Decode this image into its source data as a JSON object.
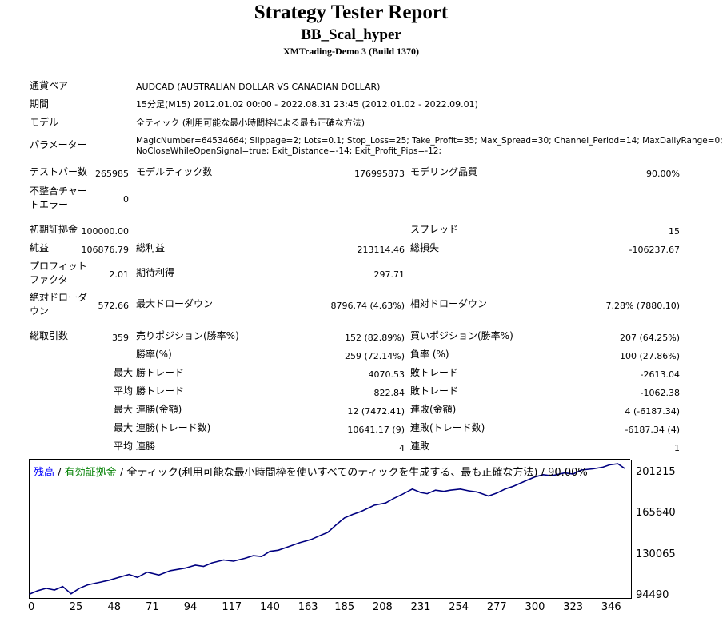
{
  "header": {
    "title": "Strategy Tester Report",
    "subtitle": "BB_Scal_hyper",
    "server": "XMTrading-Demo 3 (Build 1370)"
  },
  "settings": {
    "symbol_label": "通貨ペア",
    "symbol_value": "AUDCAD (AUSTRALIAN DOLLAR VS CANADIAN DOLLAR)",
    "period_label": "期間",
    "period_value": "15分足(M15) 2012.01.02 00:00 - 2022.08.31 23:45 (2012.01.02 - 2022.09.01)",
    "model_label": "モデル",
    "model_value": "全ティック (利用可能な最小時間枠による最も正確な方法)",
    "params_label": "パラメーター",
    "params_line1": "MagicNumber=64534664; Slippage=2; Lots=0.1; Stop_Loss=25; Take_Profit=35; Max_Spread=30; Channel_Period=14; MaxDailyRange=0;",
    "params_line2": "NoCloseWhileOpenSignal=true; Exit_Distance=-14; Exit_Profit_Pips=-12;"
  },
  "stats": {
    "bars_label": "テストバー数",
    "bars_value": "265985",
    "ticks_label": "モデルティック数",
    "ticks_value": "176995873",
    "quality_label": "モデリング品質",
    "quality_value": "90.00%",
    "mismatch_label_1": "不整合チャー",
    "mismatch_label_2": "トエラー",
    "mismatch_value": "0",
    "deposit_label": "初期証拠金",
    "deposit_value": "100000.00",
    "spread_label": "スプレッド",
    "spread_value": "15",
    "net_label": "純益",
    "net_value": "106876.79",
    "gross_profit_label": "総利益",
    "gross_profit_value": "213114.46",
    "gross_loss_label": "総損失",
    "gross_loss_value": "-106237.67",
    "pf_label_1": "プロフィット",
    "pf_label_2": "ファクタ",
    "pf_value": "2.01",
    "expected_label": "期待利得",
    "expected_value": "297.71",
    "abs_dd_label_1": "絶対ドローダ",
    "abs_dd_label_2": "ウン",
    "abs_dd_value": "572.66",
    "max_dd_label": "最大ドローダウン",
    "max_dd_value": "8796.74 (4.63%)",
    "rel_dd_label": "相対ドローダウン",
    "rel_dd_value": "7.28% (7880.10)",
    "trades_label": "総取引数",
    "trades_value": "359",
    "short_label": "売りポジション(勝率%)",
    "short_value": "152 (82.89%)",
    "long_label": "買いポジション(勝率%)",
    "long_value": "207 (64.25%)",
    "winrate_label": "勝率(%)",
    "winrate_value": "259 (72.14%)",
    "lossrate_label": "負率 (%)",
    "lossrate_value": "100 (27.86%)",
    "max_word": "最大",
    "avg_word": "平均",
    "largest_win_label": "勝トレード",
    "largest_win_value": "4070.53",
    "largest_loss_label": "敗トレード",
    "largest_loss_value": "-2613.04",
    "avg_win_label": "勝トレード",
    "avg_win_value": "822.84",
    "avg_loss_label": "敗トレード",
    "avg_loss_value": "-1062.38",
    "max_cons_wins_label": "連勝(金額)",
    "max_cons_wins_value": "12 (7472.41)",
    "max_cons_losses_label": "連敗(金額)",
    "max_cons_losses_value": "4 (-6187.34)",
    "max_cons_profit_label": "連勝(トレード数)",
    "max_cons_profit_value": "10641.17 (9)",
    "max_cons_loss_label": "連敗(トレード数)",
    "max_cons_loss_value": "-6187.34 (4)",
    "avg_cons_wins_label": "連勝",
    "avg_cons_wins_value": "4",
    "avg_cons_losses_label": "連敗",
    "avg_cons_losses_value": "1"
  },
  "chart_legend": {
    "balance": "残高",
    "sep1": " / ",
    "equity": "有効証拠金",
    "sep2": " / ",
    "rest": "全ティック(利用可能な最小時間枠を使いすべてのティックを生成する、最も正確な方法) / 90.00%"
  },
  "colors": {
    "balance": "#0000ff",
    "equity": "#008000",
    "line": "#000080"
  },
  "chart_data": {
    "type": "line",
    "title": "",
    "xlabel": "",
    "ylabel": "",
    "x_ticks": [
      "0",
      "25",
      "48",
      "71",
      "94",
      "117",
      "140",
      "163",
      "185",
      "208",
      "231",
      "254",
      "277",
      "300",
      "323",
      "346"
    ],
    "y_ticks": [
      "201215",
      "165640",
      "130065",
      "94490"
    ],
    "ylim": [
      94490,
      213000
    ],
    "xlim": [
      0,
      362
    ],
    "series": [
      {
        "name": "残高",
        "x": [
          0,
          5,
          10,
          15,
          20,
          25,
          30,
          35,
          40,
          48,
          55,
          60,
          65,
          71,
          78,
          85,
          94,
          100,
          105,
          110,
          117,
          123,
          130,
          135,
          140,
          145,
          150,
          155,
          163,
          170,
          175,
          180,
          185,
          190,
          195,
          200,
          208,
          215,
          220,
          225,
          231,
          236,
          240,
          245,
          250,
          254,
          260,
          265,
          270,
          277,
          282,
          287,
          292,
          300,
          305,
          310,
          315,
          323,
          328,
          333,
          340,
          346,
          350,
          355,
          359
        ],
        "values": [
          96500,
          99500,
          101500,
          100000,
          103000,
          96800,
          101500,
          104500,
          106000,
          108500,
          111500,
          113500,
          111000,
          115500,
          113000,
          116800,
          119000,
          121500,
          120500,
          123500,
          126000,
          125000,
          127500,
          129800,
          129000,
          133500,
          134500,
          137000,
          141000,
          143800,
          147000,
          150000,
          156500,
          162500,
          165500,
          168000,
          173500,
          175500,
          179500,
          183000,
          187500,
          184500,
          183500,
          186500,
          185500,
          186500,
          187500,
          186000,
          185000,
          181500,
          184000,
          187500,
          190000,
          195000,
          198000,
          200000,
          199000,
          201500,
          200500,
          204000,
          205000,
          206500,
          208500,
          209500,
          205500
        ]
      }
    ]
  }
}
